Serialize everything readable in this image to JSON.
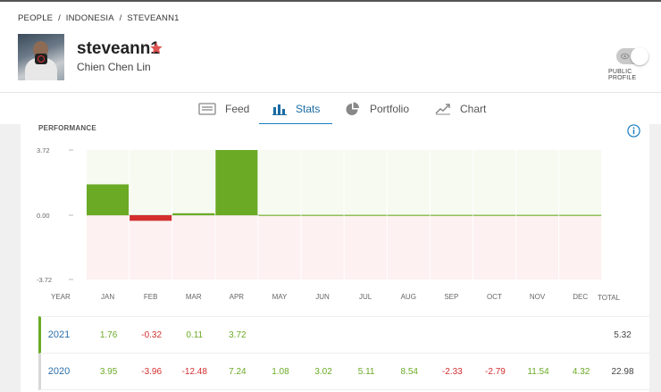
{
  "breadcrumb": {
    "people": "PEOPLE",
    "sep1": "/",
    "country": "INDONESIA",
    "sep2": "/",
    "user": "STEVEANN1"
  },
  "profile": {
    "username": "steveann1",
    "full_name": "Chien Chen Lin",
    "public_profile_label": "PUBLIC PROFILE"
  },
  "tabs": [
    {
      "label": "Feed",
      "icon": "feed-icon"
    },
    {
      "label": "Stats",
      "icon": "stats-icon",
      "active": true
    },
    {
      "label": "Portfolio",
      "icon": "portfolio-icon"
    },
    {
      "label": "Chart",
      "icon": "chart-icon"
    }
  ],
  "performance": {
    "title": "PERFORMANCE",
    "total_label": "TOTAL"
  },
  "colors": {
    "positive": "#6aaa25",
    "negative": "#d32f2f",
    "accent": "#1a7dc0",
    "star": "#e05454"
  },
  "chart_data": {
    "type": "bar",
    "year_label": "YEAR",
    "categories": [
      "JAN",
      "FEB",
      "MAR",
      "APR",
      "MAY",
      "JUN",
      "JUL",
      "AUG",
      "SEP",
      "OCT",
      "NOV",
      "DEC"
    ],
    "values": [
      1.76,
      -0.32,
      0.11,
      3.72,
      0,
      0,
      0,
      0,
      0,
      0,
      0,
      0
    ],
    "ylim": [
      -3.72,
      3.72
    ],
    "yticks": [
      "3.72",
      "0.00",
      "-3.72"
    ]
  },
  "table": {
    "rows": [
      {
        "year": "2021",
        "values": [
          "1.76",
          "-0.32",
          "0.11",
          "3.72",
          "",
          "",
          "",
          "",
          "",
          "",
          "",
          ""
        ],
        "total": "5.32"
      },
      {
        "year": "2020",
        "values": [
          "3.95",
          "-3.96",
          "-12.48",
          "7.24",
          "1.08",
          "3.02",
          "5.11",
          "8.54",
          "-2.33",
          "-2.79",
          "11.54",
          "4.32"
        ],
        "total": "22.98"
      }
    ]
  }
}
